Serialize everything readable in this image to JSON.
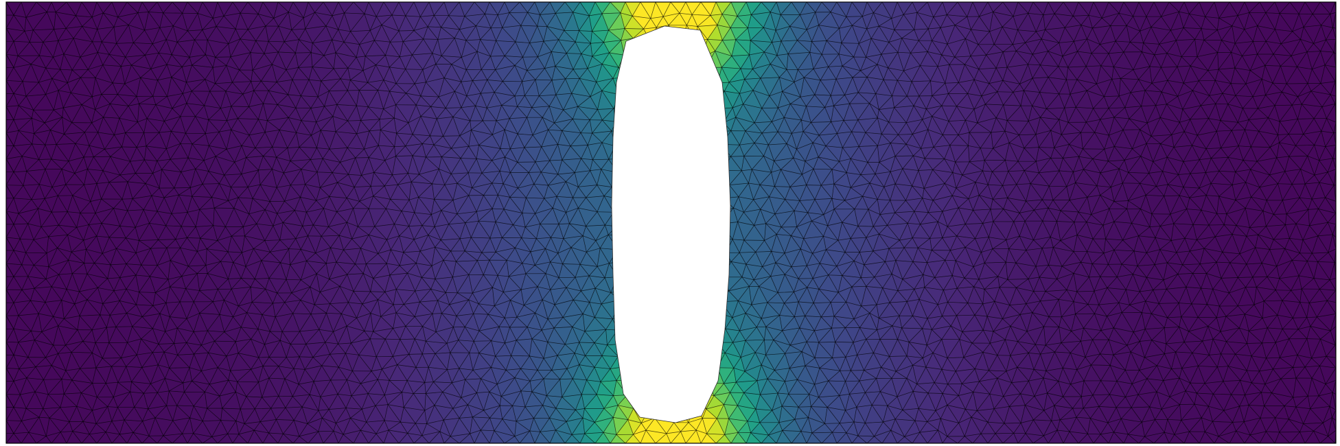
{
  "figure": {
    "kind": "finite-element mesh with scalar field",
    "colormap": "viridis",
    "colormap_stops": [
      "#440154",
      "#482878",
      "#3e4989",
      "#31688e",
      "#26828e",
      "#1f9e89",
      "#35b779",
      "#6ece58",
      "#b5de2b",
      "#fde725"
    ],
    "background_color": "#ffffff",
    "mesh_edge_color": "#000000",
    "hole_fill": "#ffffff"
  }
}
